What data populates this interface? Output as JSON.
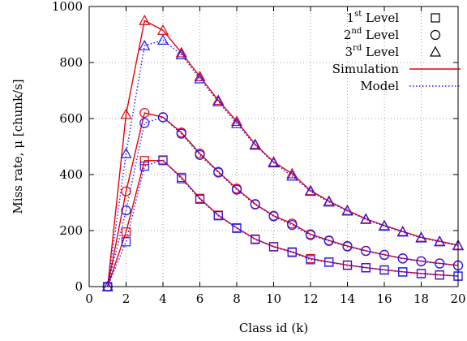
{
  "chart_data": {
    "type": "line",
    "title": "",
    "xlabel": "Class id (k)",
    "ylabel": "Miss rate, μ [chunk/s]",
    "xlim": [
      0,
      20
    ],
    "ylim": [
      0,
      1000
    ],
    "xticks": [
      0,
      2,
      4,
      6,
      8,
      10,
      12,
      14,
      16,
      18,
      20
    ],
    "yticks": [
      0,
      200,
      400,
      600,
      800,
      1000
    ],
    "grid": true,
    "legend_position": "top-right",
    "x": [
      1,
      2,
      3,
      4,
      5,
      6,
      7,
      8,
      9,
      10,
      11,
      12,
      13,
      14,
      15,
      16,
      17,
      18,
      19,
      20
    ],
    "series": [
      {
        "name": "Simulation",
        "level": "1st Level",
        "marker": "square",
        "color": "#e8000b",
        "style": "solid",
        "values": [
          0,
          195,
          450,
          450,
          390,
          315,
          255,
          210,
          170,
          143,
          124,
          100,
          88,
          77,
          68,
          60,
          53,
          47,
          42,
          38
        ]
      },
      {
        "name": "Model",
        "level": "1st Level",
        "marker": "square",
        "color": "#1a1aff",
        "style": "dotted",
        "values": [
          0,
          160,
          430,
          452,
          385,
          312,
          253,
          208,
          168,
          142,
          122,
          96,
          87,
          76,
          67,
          59,
          52,
          46,
          41,
          37
        ]
      },
      {
        "name": "Simulation",
        "level": "2nd Level",
        "marker": "circle",
        "color": "#e8000b",
        "style": "solid",
        "values": [
          0,
          340,
          620,
          605,
          550,
          475,
          410,
          350,
          295,
          253,
          225,
          187,
          165,
          145,
          128,
          114,
          101,
          91,
          83,
          76
        ]
      },
      {
        "name": "Model",
        "level": "2nd Level",
        "marker": "circle",
        "color": "#1a1aff",
        "style": "dotted",
        "values": [
          0,
          272,
          584,
          604,
          546,
          470,
          407,
          346,
          293,
          251,
          220,
          184,
          163,
          143,
          127,
          113,
          100,
          90,
          82,
          75
        ]
      },
      {
        "name": "Simulation",
        "level": "3rd Level",
        "marker": "triangle",
        "color": "#e8000b",
        "style": "solid",
        "values": [
          0,
          615,
          950,
          915,
          835,
          750,
          665,
          590,
          508,
          445,
          403,
          343,
          305,
          272,
          242,
          218,
          197,
          176,
          162,
          148
        ]
      },
      {
        "name": "Model",
        "level": "3rd Level",
        "marker": "triangle",
        "color": "#1a1aff",
        "style": "dotted",
        "values": [
          0,
          475,
          860,
          880,
          828,
          742,
          660,
          582,
          505,
          442,
          395,
          340,
          302,
          270,
          240,
          216,
          195,
          174,
          160,
          146
        ]
      }
    ],
    "legend": {
      "levels": [
        {
          "prefix": "1",
          "sup": "st",
          "suffix": " Level",
          "marker": "square"
        },
        {
          "prefix": "2",
          "sup": "nd",
          "suffix": " Level",
          "marker": "circle"
        },
        {
          "prefix": "3",
          "sup": "rd",
          "suffix": " Level",
          "marker": "triangle"
        }
      ],
      "lines": [
        {
          "label": "Simulation",
          "color": "#e8000b",
          "style": "solid"
        },
        {
          "label": "Model",
          "color": "#1a1aff",
          "style": "dotted"
        }
      ]
    }
  }
}
